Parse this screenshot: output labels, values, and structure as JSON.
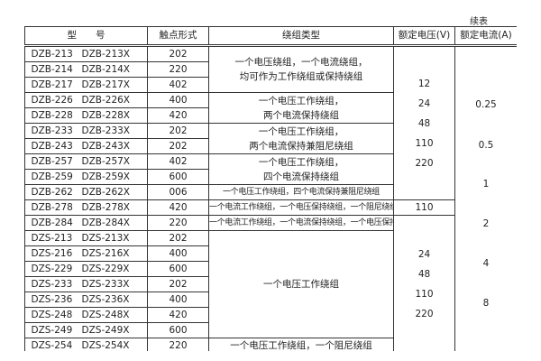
{
  "continued_label": "续表",
  "headers": [
    "型　　号",
    "触点形式",
    "绕组类型",
    "额定电压(V)",
    "额定电流(A)"
  ],
  "rows": [
    {
      "model": "DZB-213",
      "model_x": "DZB-213X",
      "contact": "202"
    },
    {
      "model": "DZB-214",
      "model_x": "DZB-214X",
      "contact": "220"
    },
    {
      "model": "DZB-217",
      "model_x": "DZB-217X",
      "contact": "402"
    },
    {
      "model": "DZB-226",
      "model_x": "DZB-226X",
      "contact": "400"
    },
    {
      "model": "DZB-228",
      "model_x": "DZB-228X",
      "contact": "420"
    },
    {
      "model": "DZB-233",
      "model_x": "DZB-233X",
      "contact": "202"
    },
    {
      "model": "DZB-243",
      "model_x": "DZB-243X",
      "contact": "202"
    },
    {
      "model": "DZB-257",
      "model_x": "DZB-257X",
      "contact": "402"
    },
    {
      "model": "DZB-259",
      "model_x": "DZB-259X",
      "contact": "600"
    },
    {
      "model": "DZB-262",
      "model_x": "DZB-262X",
      "contact": "006"
    },
    {
      "model": "DZB-278",
      "model_x": "DZB-278X",
      "contact": "420"
    },
    {
      "model": "DZB-284",
      "model_x": "DZB-284X",
      "contact": "220"
    },
    {
      "model": "DZS-213",
      "model_x": "DZS-213X",
      "contact": "202"
    },
    {
      "model": "DZS-216",
      "model_x": "DZS-216X",
      "contact": "400"
    },
    {
      "model": "DZS-229",
      "model_x": "DZS-229X",
      "contact": "600"
    },
    {
      "model": "DZS-233",
      "model_x": "DZS-233X",
      "contact": "202"
    },
    {
      "model": "DZS-236",
      "model_x": "DZS-236X",
      "contact": "400"
    },
    {
      "model": "DZS-248",
      "model_x": "DZS-248X",
      "contact": "420"
    },
    {
      "model": "DZS-249",
      "model_x": "DZS-249X",
      "contact": "600"
    },
    {
      "model": "DZS-254",
      "model_x": "DZS-254X",
      "contact": "220"
    }
  ],
  "windings": [
    [
      "一个电压绕组，一个电流绕组，",
      "均可作为工作绕组或保持绕组"
    ],
    [
      "一个电压工作绕组，",
      "两个电流保持绕组"
    ],
    [
      "一个电压工作绕组，",
      "两个电流保持兼阻尼绕组"
    ],
    [
      "一个电压工作绕组，",
      "四个电流保持绕组"
    ],
    [
      "一个电压工作绕组，四个电流保持兼阻尼绕组"
    ],
    [
      "一个电流工作绕组，一个电压保持绕组，一个阻尼绕组"
    ],
    [
      "一个电流工作绕组，一个电流保持绕组，一个电压保持绕组"
    ],
    [
      "一个电压工作绕组"
    ],
    [
      "一个电压工作绕组，一个阻尼绕组"
    ]
  ],
  "voltages": {
    "group1": [
      "12",
      "24",
      "48",
      "110",
      "220"
    ],
    "group2": [
      "110"
    ],
    "group3": [
      "24",
      "48",
      "110",
      "220"
    ]
  },
  "currents": [
    "0.25",
    "0.5",
    "1",
    "2",
    "4",
    "8"
  ]
}
